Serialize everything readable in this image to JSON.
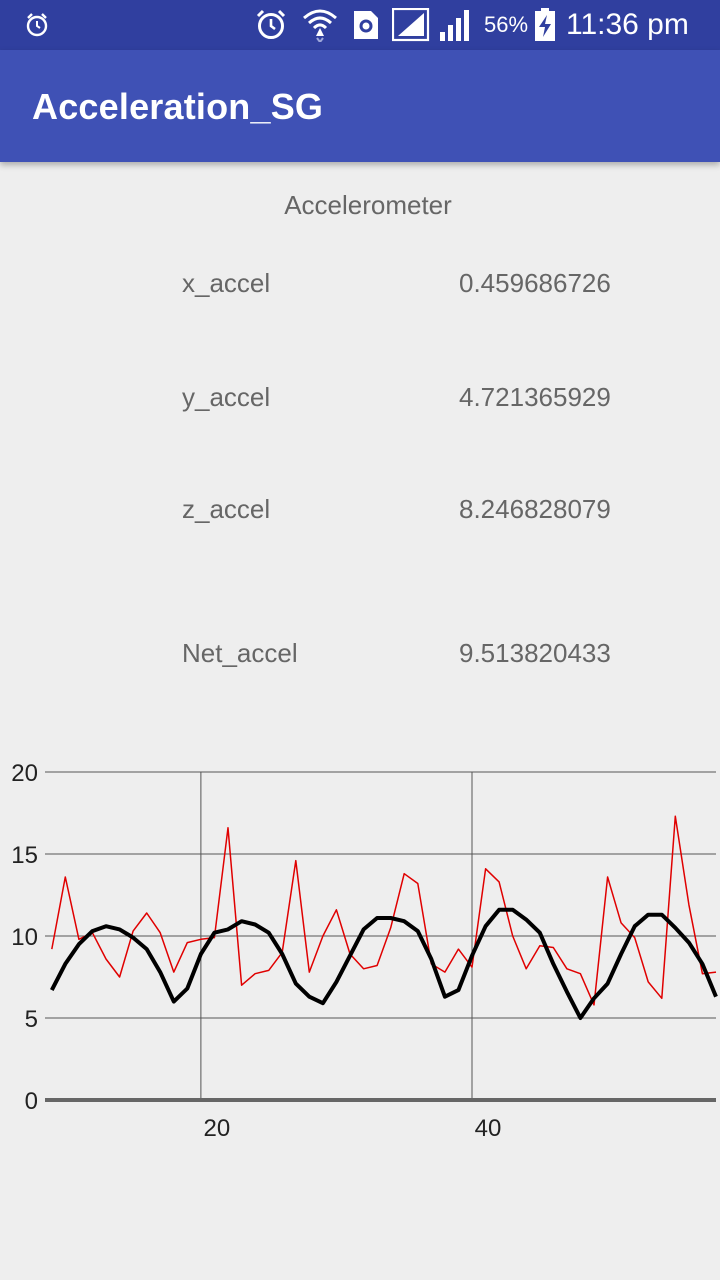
{
  "status_bar": {
    "battery": "56%",
    "time": "11:36 pm",
    "icons": [
      "alarm-small-icon",
      "alarm-clock-icon",
      "wifi-icon",
      "sim-icon",
      "signal-bars-1-icon",
      "signal-bars-2-icon",
      "battery-charging-icon"
    ]
  },
  "app_bar": {
    "title": "Acceleration_SG"
  },
  "accelerometer": {
    "title": "Accelerometer",
    "rows": [
      {
        "label": "x_accel",
        "value": "0.459686726"
      },
      {
        "label": "y_accel",
        "value": "4.721365929"
      },
      {
        "label": "z_accel",
        "value": "8.246828079"
      },
      {
        "label": "Net_accel",
        "value": "9.513820433"
      }
    ]
  },
  "chart_data": {
    "type": "line",
    "xlim": [
      8.5,
      58
    ],
    "ylim": [
      0,
      20
    ],
    "x_ticks": [
      20,
      40
    ],
    "y_ticks": [
      0,
      5,
      10,
      15,
      20
    ],
    "grid": true,
    "x_start": 9,
    "x_step": 1,
    "series": [
      {
        "color": "#e00000",
        "values": [
          9.2,
          13.6,
          9.8,
          10.2,
          8.6,
          7.5,
          10.3,
          11.4,
          10.2,
          7.8,
          9.6,
          9.8,
          9.9,
          16.6,
          7.0,
          7.7,
          7.9,
          9.0,
          14.6,
          7.8,
          10.0,
          11.6,
          8.9,
          8.0,
          8.2,
          10.5,
          13.8,
          13.2,
          8.3,
          7.8,
          9.2,
          8.1,
          14.1,
          13.3,
          10.0,
          8.0,
          9.4,
          9.3,
          8.0,
          7.7,
          5.8,
          13.6,
          10.8,
          9.9,
          7.2,
          6.2,
          17.3,
          11.9,
          7.7,
          7.8
        ]
      },
      {
        "color": "#000000",
        "values": [
          6.7,
          8.3,
          9.5,
          10.3,
          10.6,
          10.4,
          9.9,
          9.2,
          7.8,
          6.0,
          6.8,
          8.9,
          10.2,
          10.4,
          10.9,
          10.7,
          10.2,
          8.9,
          7.1,
          6.3,
          5.9,
          7.2,
          8.8,
          10.4,
          11.1,
          11.1,
          10.9,
          10.3,
          8.6,
          6.3,
          6.7,
          8.8,
          10.6,
          11.6,
          11.6,
          11.0,
          10.2,
          8.3,
          6.6,
          5.0,
          6.2,
          7.1,
          8.9,
          10.6,
          11.3,
          11.3,
          10.5,
          9.6,
          8.3,
          6.3
        ]
      }
    ]
  }
}
